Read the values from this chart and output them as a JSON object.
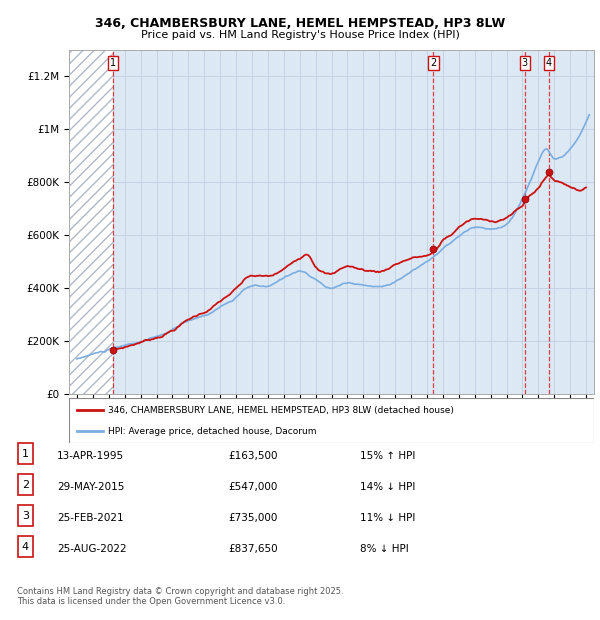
{
  "title_line1": "346, CHAMBERSBURY LANE, HEMEL HEMPSTEAD, HP3 8LW",
  "title_line2": "Price paid vs. HM Land Registry's House Price Index (HPI)",
  "ylim": [
    0,
    1300000
  ],
  "yticks": [
    0,
    200000,
    400000,
    600000,
    800000,
    1000000,
    1200000
  ],
  "ytick_labels": [
    "£0",
    "£200K",
    "£400K",
    "£600K",
    "£800K",
    "£1M",
    "£1.2M"
  ],
  "xlim_start": 1992.5,
  "xlim_end": 2025.5,
  "hpi_color": "#7aade0",
  "price_color": "#cc1111",
  "bg_color": "#dde8f5",
  "grid_color": "#c0cfe0",
  "transaction_dates": [
    1995.28,
    2015.41,
    2021.15,
    2022.65
  ],
  "transaction_prices": [
    163500,
    547000,
    735000,
    837650
  ],
  "transaction_labels": [
    "1",
    "2",
    "3",
    "4"
  ],
  "legend_price_label": "346, CHAMBERSBURY LANE, HEMEL HEMPSTEAD, HP3 8LW (detached house)",
  "legend_hpi_label": "HPI: Average price, detached house, Dacorum",
  "table_rows": [
    {
      "num": "1",
      "date": "13-APR-1995",
      "price": "£163,500",
      "hpi": "15% ↑ HPI"
    },
    {
      "num": "2",
      "date": "29-MAY-2015",
      "price": "£547,000",
      "hpi": "14% ↓ HPI"
    },
    {
      "num": "3",
      "date": "25-FEB-2021",
      "price": "£735,000",
      "hpi": "11% ↓ HPI"
    },
    {
      "num": "4",
      "date": "25-AUG-2022",
      "price": "£837,650",
      "hpi": "8% ↓ HPI"
    }
  ],
  "footer_text": "Contains HM Land Registry data © Crown copyright and database right 2025.\nThis data is licensed under the Open Government Licence v3.0."
}
